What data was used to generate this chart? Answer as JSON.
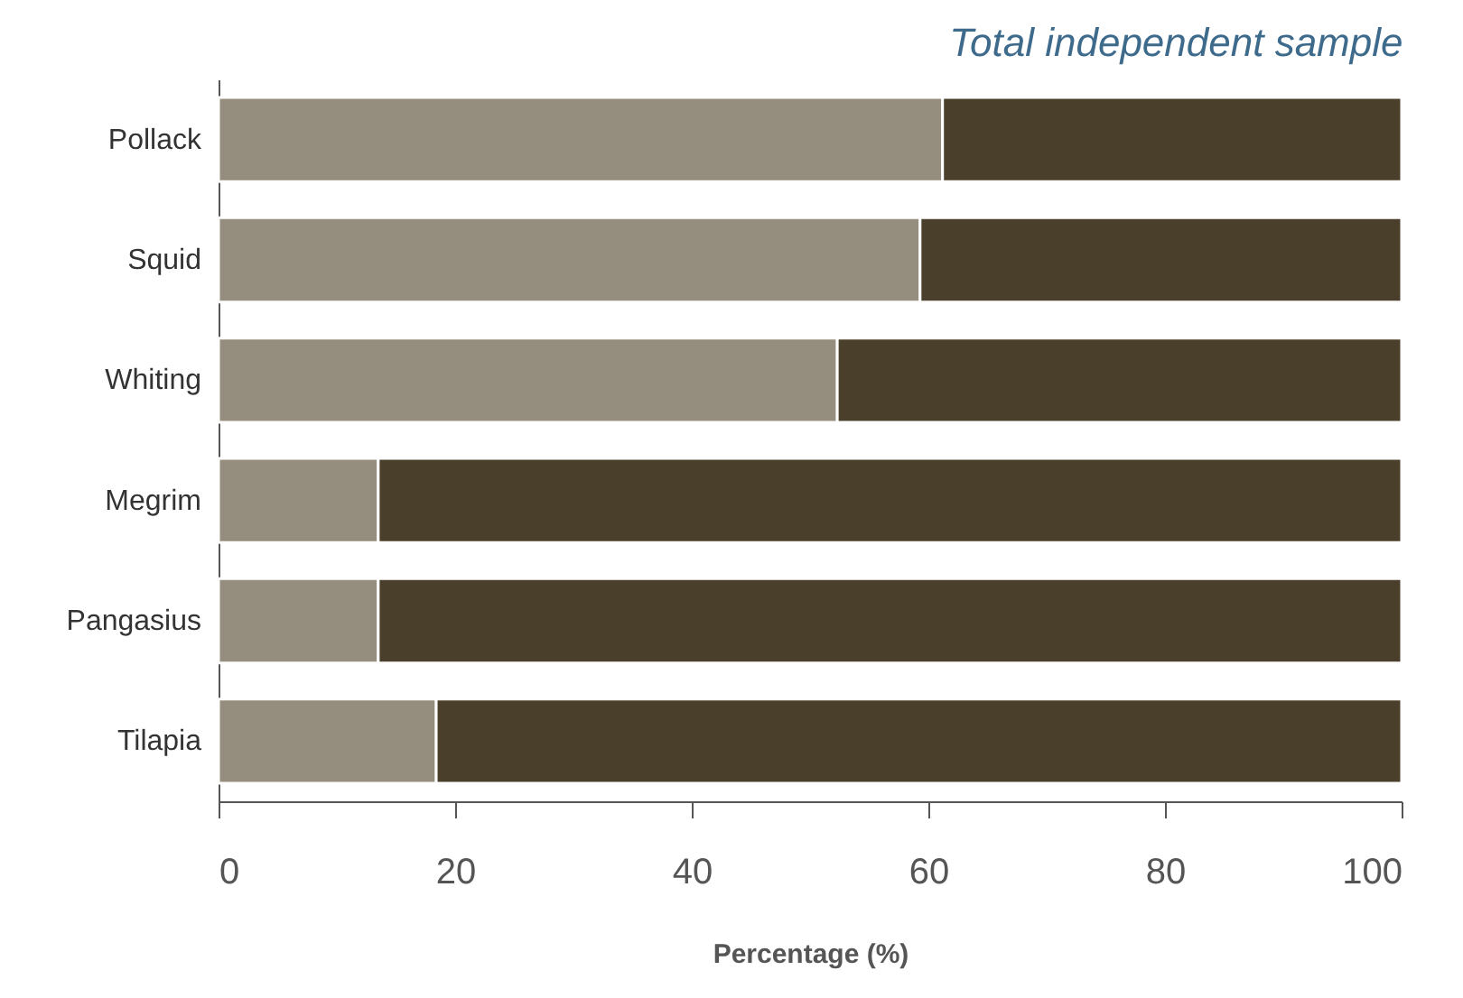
{
  "chart_data": {
    "type": "bar",
    "orientation": "horizontal",
    "stacked": true,
    "title": "Total independent sample",
    "xlabel": "Percentage (%)",
    "categories": [
      "Pollack",
      "Squid",
      "Whiting",
      "Megrim",
      "Pangasius",
      "Tilapia"
    ],
    "series": [
      {
        "color": "#958d7d",
        "values": [
          61.2,
          59.3,
          52.3,
          13.5,
          13.5,
          18.4
        ]
      },
      {
        "color": "#4a3f2a",
        "values": [
          38.8,
          40.7,
          47.7,
          86.5,
          86.5,
          81.6
        ]
      }
    ],
    "xlim": [
      0,
      100
    ],
    "xticks": [
      0,
      20,
      40,
      60,
      80,
      100
    ],
    "grid": false,
    "legend": false
  }
}
